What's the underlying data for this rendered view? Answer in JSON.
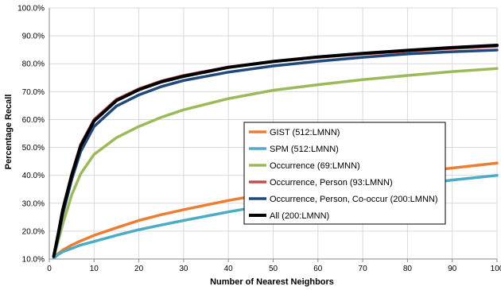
{
  "chart_data": {
    "type": "line",
    "title": "",
    "xlabel": "Number of Nearest Neighbors",
    "ylabel": "Percentage Recall",
    "xlim": [
      0,
      100
    ],
    "ylim": [
      10,
      100
    ],
    "x_ticks": [
      "0",
      "10",
      "20",
      "30",
      "40",
      "50",
      "60",
      "70",
      "80",
      "90",
      "100"
    ],
    "y_ticks": [
      "10.0%",
      "20.0%",
      "30.0%",
      "40.0%",
      "50.0%",
      "60.0%",
      "70.0%",
      "80.0%",
      "90.0%",
      "100.0%"
    ],
    "grid": true,
    "legend_position": "center-right",
    "x": [
      1,
      2,
      3,
      5,
      7,
      10,
      15,
      20,
      25,
      30,
      40,
      50,
      60,
      70,
      80,
      90,
      100
    ],
    "series": [
      {
        "name": "GIST (512:LMNN)",
        "color": "#ed7d31",
        "values": [
          10.5,
          12.0,
          13.2,
          15.0,
          16.5,
          18.5,
          21.2,
          23.8,
          25.9,
          27.7,
          31.0,
          33.8,
          36.3,
          38.6,
          40.8,
          42.6,
          44.4
        ]
      },
      {
        "name": "SPM (512:LMNN)",
        "color": "#4bacc6",
        "values": [
          10.3,
          11.6,
          12.6,
          13.8,
          15.0,
          16.3,
          18.5,
          20.5,
          22.2,
          23.8,
          26.9,
          29.7,
          32.2,
          34.4,
          36.4,
          38.3,
          40.0
        ]
      },
      {
        "name": "Occurrence (69:LMNN)",
        "color": "#9bbb59",
        "values": [
          10.8,
          16.5,
          22.5,
          33.0,
          40.5,
          47.5,
          53.5,
          57.5,
          60.8,
          63.5,
          67.5,
          70.5,
          72.5,
          74.3,
          75.8,
          77.2,
          78.3
        ]
      },
      {
        "name": "Occurrence, Person (93:LMNN)",
        "color": "#c0504d",
        "values": [
          11.0,
          19.5,
          28.0,
          40.5,
          51.0,
          60.0,
          67.2,
          71.0,
          73.8,
          75.8,
          78.8,
          80.8,
          82.3,
          83.5,
          84.5,
          85.5,
          86.3
        ]
      },
      {
        "name": "Occurrence, Person, Co-occur (200:LMNN)",
        "color": "#1f497d",
        "values": [
          10.8,
          18.0,
          26.0,
          38.5,
          48.5,
          57.5,
          64.8,
          68.8,
          71.8,
          74.0,
          77.0,
          79.2,
          80.9,
          82.3,
          83.5,
          84.3,
          84.9
        ]
      },
      {
        "name": "All (200:LMNN)",
        "color": "#000000",
        "values": [
          11.0,
          19.0,
          27.5,
          40.0,
          50.5,
          59.5,
          66.8,
          70.7,
          73.5,
          75.5,
          78.7,
          80.8,
          82.4,
          83.7,
          84.8,
          85.8,
          86.6
        ]
      }
    ]
  }
}
